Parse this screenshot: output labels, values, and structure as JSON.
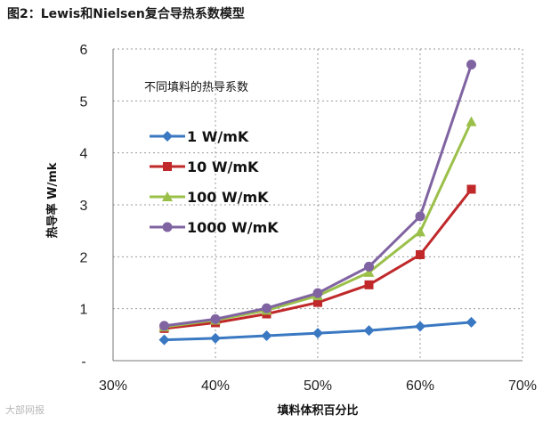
{
  "figure_title": "图2：Lewis和Nielsen复合导热系数模型",
  "watermark": "大部网报",
  "chart_data": {
    "type": "line",
    "title": "",
    "xlabel": "填料体积百分比",
    "ylabel": "热导率  W/mk",
    "x": [
      0.35,
      0.4,
      0.45,
      0.5,
      0.55,
      0.6,
      0.65
    ],
    "xlim": [
      0.3,
      0.7
    ],
    "ylim": [
      0,
      6
    ],
    "x_ticks": [
      {
        "value": 0.3,
        "label": "30%"
      },
      {
        "value": 0.4,
        "label": "40%"
      },
      {
        "value": 0.5,
        "label": "50%"
      },
      {
        "value": 0.6,
        "label": "60%"
      },
      {
        "value": 0.7,
        "label": "70%"
      }
    ],
    "y_ticks": [
      {
        "value": 0,
        "label": "-"
      },
      {
        "value": 1,
        "label": "1"
      },
      {
        "value": 2,
        "label": "2"
      },
      {
        "value": 3,
        "label": "3"
      },
      {
        "value": 4,
        "label": "4"
      },
      {
        "value": 5,
        "label": "5"
      },
      {
        "value": 6,
        "label": "6"
      }
    ],
    "grid": {
      "x": true,
      "y": true,
      "style": "dotted"
    },
    "legend": {
      "title": "不同填料的热导系数",
      "placement": "top-left"
    },
    "series": [
      {
        "name": "1 W/mK",
        "color": "#3a78c2",
        "marker": "diamond",
        "values": [
          0.4,
          0.43,
          0.48,
          0.53,
          0.58,
          0.66,
          0.74
        ]
      },
      {
        "name": "10 W/mK",
        "color": "#c0282a",
        "marker": "square",
        "values": [
          0.62,
          0.73,
          0.9,
          1.12,
          1.46,
          2.04,
          3.3
        ]
      },
      {
        "name": "100 W/mK",
        "color": "#9bc04a",
        "marker": "triangle",
        "values": [
          0.65,
          0.78,
          0.97,
          1.25,
          1.7,
          2.48,
          4.6
        ]
      },
      {
        "name": "1000 W/mK",
        "color": "#8064a2",
        "marker": "circle",
        "values": [
          0.67,
          0.8,
          1.01,
          1.3,
          1.81,
          2.78,
          5.7
        ]
      }
    ]
  }
}
